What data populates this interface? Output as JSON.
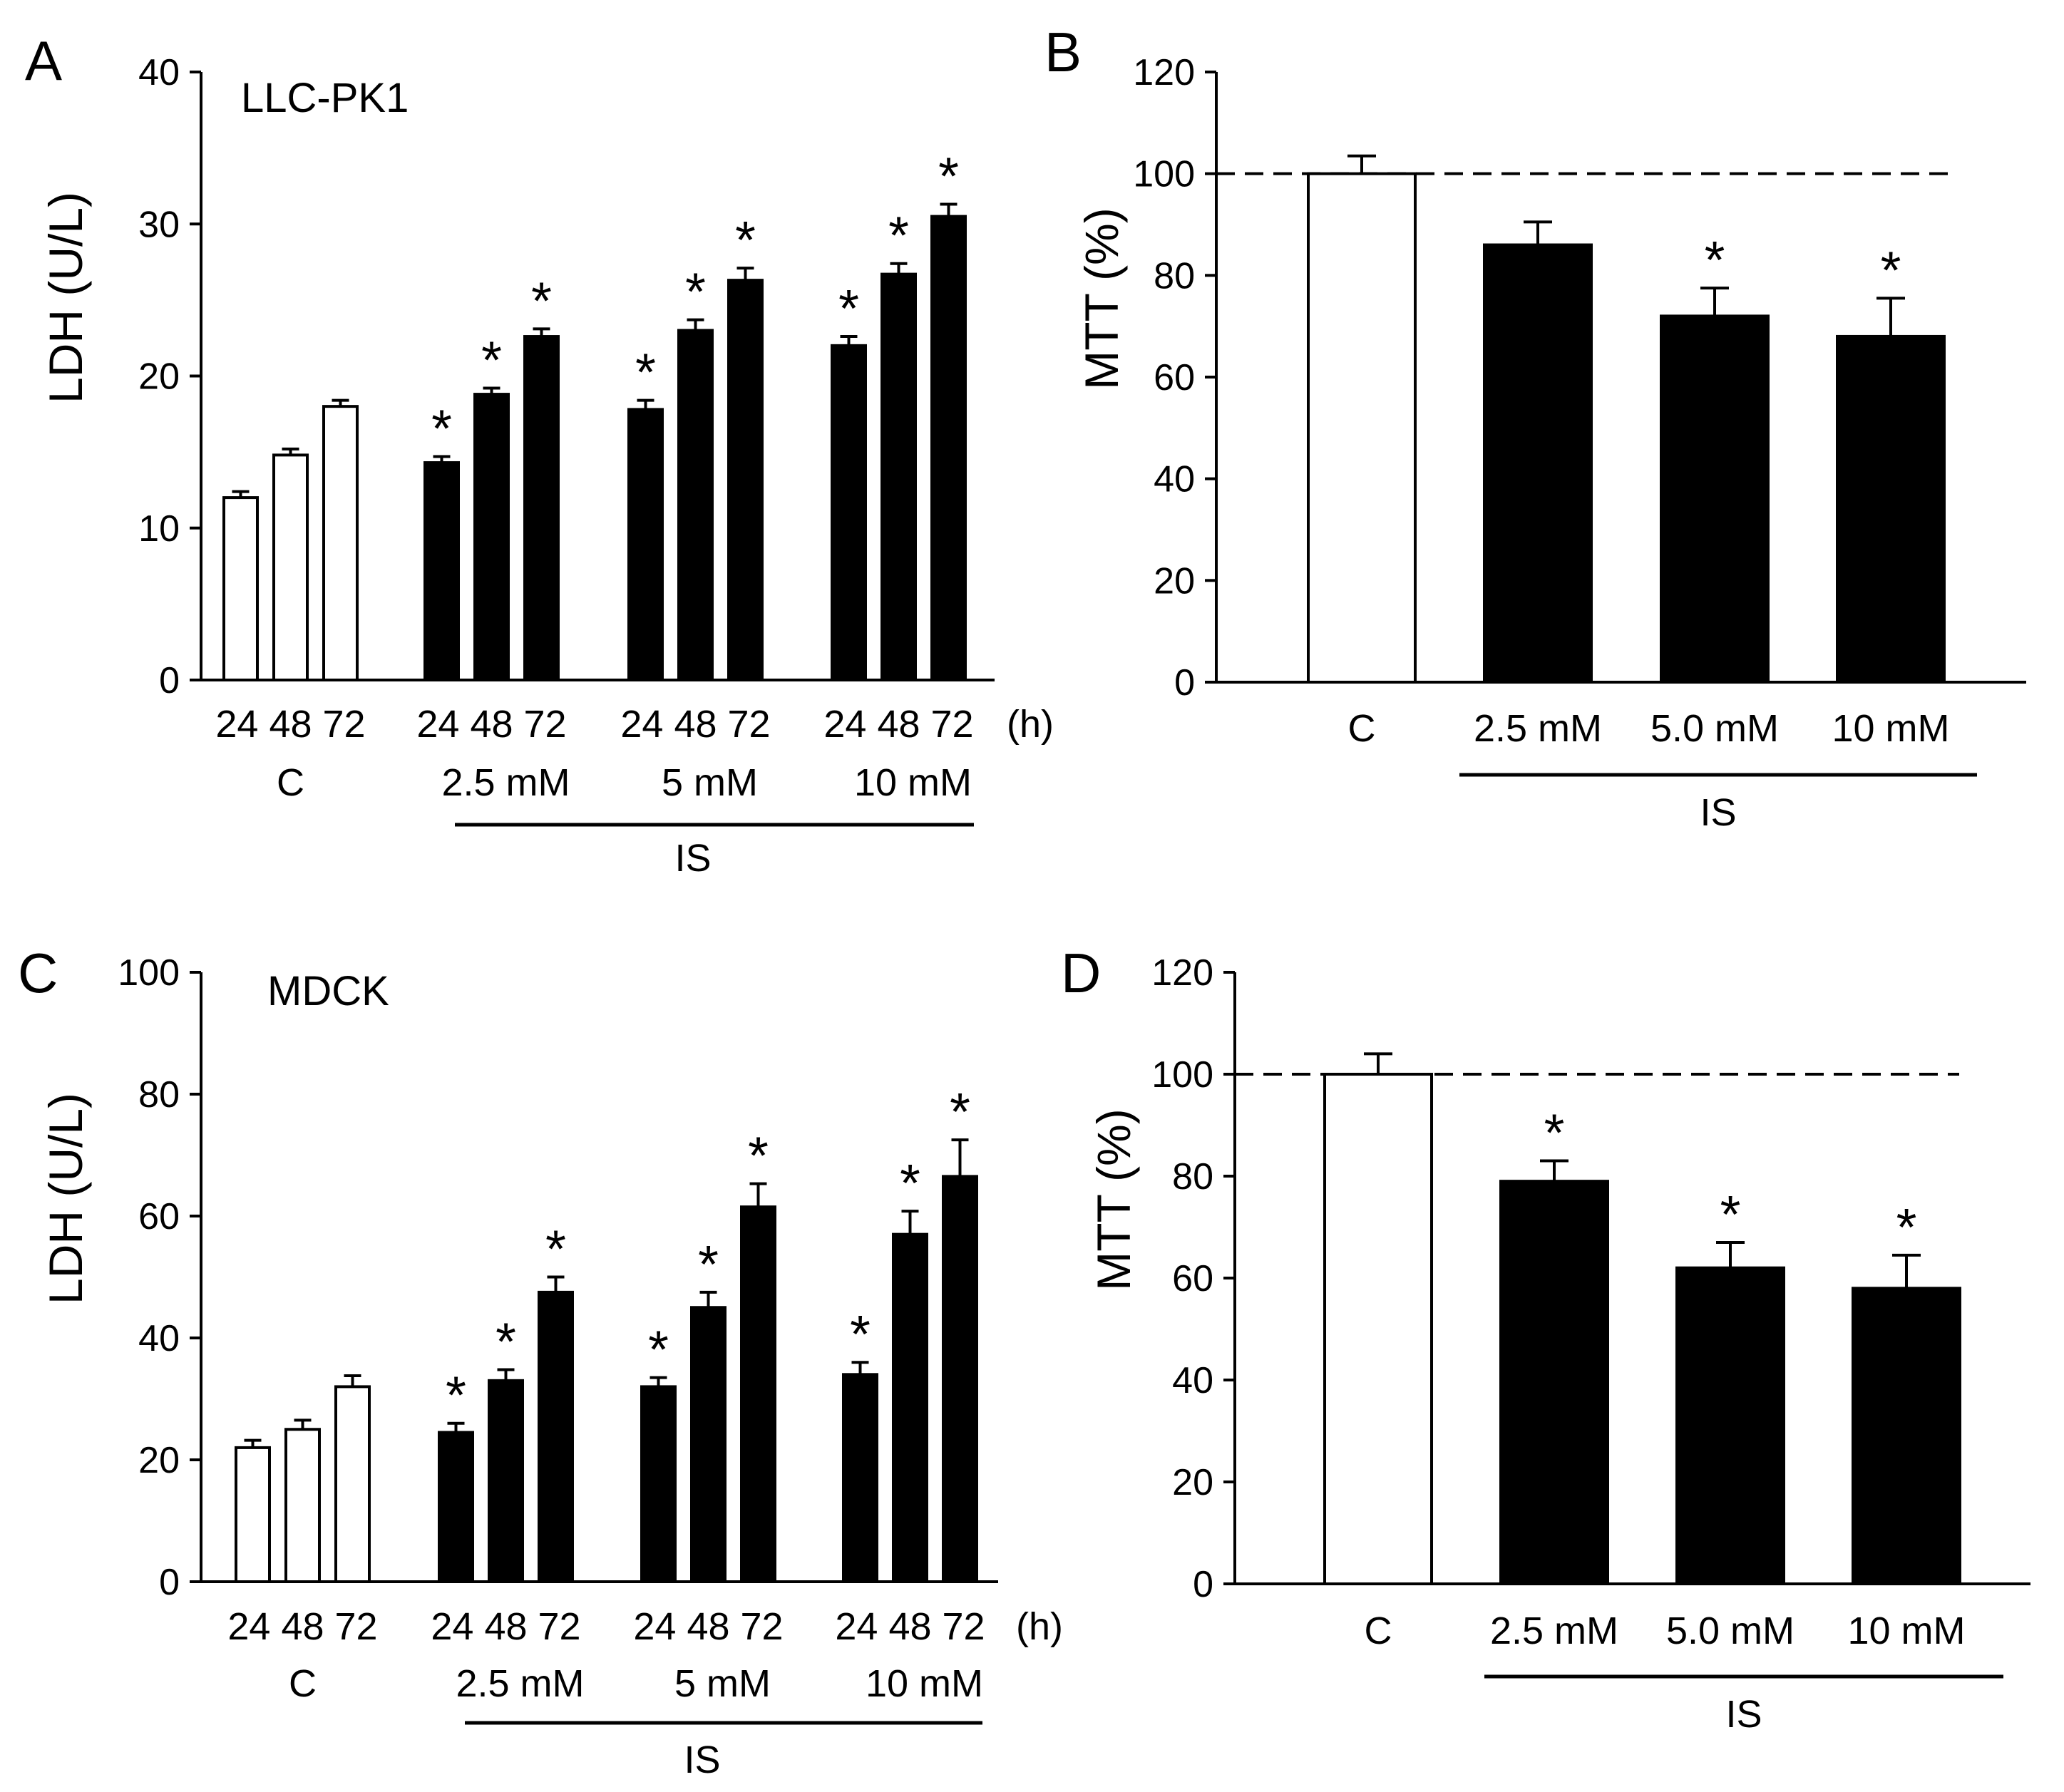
{
  "colors": {
    "control": "#ffffff",
    "treated": "#000000",
    "axis": "#000000"
  },
  "chart_data": [
    {
      "panel": "A",
      "type": "bar",
      "cell_line": "LLC-PK1",
      "ylabel": "LDH (U/L)",
      "ylim": [
        0,
        40
      ],
      "yticks": [
        0,
        10,
        20,
        30,
        40
      ],
      "time_label": "24 48 72",
      "time_unit": "(h)",
      "group_caption": "IS",
      "groups": [
        {
          "label": "C",
          "is_control": true,
          "values": [
            12,
            14.8,
            18
          ],
          "errors": [
            0.4,
            0.4,
            0.4
          ],
          "significant": [
            false,
            false,
            false
          ]
        },
        {
          "label": "2.5 mM",
          "is_control": false,
          "values": [
            14.3,
            18.8,
            22.6
          ],
          "errors": [
            0.4,
            0.4,
            0.5
          ],
          "significant": [
            true,
            true,
            true
          ]
        },
        {
          "label": "5 mM",
          "is_control": false,
          "values": [
            17.8,
            23,
            26.3
          ],
          "errors": [
            0.6,
            0.7,
            0.8
          ],
          "significant": [
            true,
            true,
            true
          ]
        },
        {
          "label": "10 mM",
          "is_control": false,
          "values": [
            22,
            26.7,
            30.5
          ],
          "errors": [
            0.6,
            0.7,
            0.8
          ],
          "significant": [
            true,
            true,
            true
          ]
        }
      ]
    },
    {
      "panel": "B",
      "type": "bar",
      "ylabel": "MTT (%)",
      "ylim": [
        0,
        120
      ],
      "yticks": [
        0,
        20,
        40,
        60,
        80,
        100,
        120
      ],
      "reference_line": 100,
      "group_caption": "IS",
      "categories": [
        "C",
        "2.5 mM",
        "5.0 mM",
        "10 mM"
      ],
      "values": [
        100,
        86,
        72,
        68
      ],
      "errors": [
        3.5,
        4.5,
        5.5,
        7.5
      ],
      "significant": [
        false,
        false,
        true,
        true
      ],
      "is_control": [
        true,
        false,
        false,
        false
      ]
    },
    {
      "panel": "C",
      "type": "bar",
      "cell_line": "MDCK",
      "ylabel": "LDH (U/L)",
      "ylim": [
        0,
        100
      ],
      "yticks": [
        0,
        20,
        40,
        60,
        80,
        100
      ],
      "time_label": "24 48 72",
      "time_unit": "(h)",
      "group_caption": "IS",
      "groups": [
        {
          "label": "C",
          "is_control": true,
          "values": [
            22,
            25,
            32
          ],
          "errors": [
            1.2,
            1.5,
            1.8
          ],
          "significant": [
            false,
            false,
            false
          ]
        },
        {
          "label": "2.5 mM",
          "is_control": false,
          "values": [
            24.5,
            33,
            47.5
          ],
          "errors": [
            1.5,
            1.8,
            2.5
          ],
          "significant": [
            true,
            true,
            true
          ]
        },
        {
          "label": "5 mM",
          "is_control": false,
          "values": [
            32,
            45,
            61.5
          ],
          "errors": [
            1.5,
            2.5,
            3.8
          ],
          "significant": [
            true,
            true,
            true
          ]
        },
        {
          "label": "10 mM",
          "is_control": false,
          "values": [
            34,
            57,
            66.5
          ],
          "errors": [
            2,
            3.8,
            6
          ],
          "significant": [
            true,
            true,
            true
          ]
        }
      ]
    },
    {
      "panel": "D",
      "type": "bar",
      "ylabel": "MTT (%)",
      "ylim": [
        0,
        120
      ],
      "yticks": [
        0,
        20,
        40,
        60,
        80,
        100,
        120
      ],
      "reference_line": 100,
      "group_caption": "IS",
      "categories": [
        "C",
        "2.5 mM",
        "5.0 mM",
        "10 mM"
      ],
      "values": [
        100,
        79,
        62,
        58
      ],
      "errors": [
        4,
        4,
        5,
        6.5
      ],
      "significant": [
        false,
        true,
        true,
        true
      ],
      "is_control": [
        true,
        false,
        false,
        false
      ]
    }
  ]
}
